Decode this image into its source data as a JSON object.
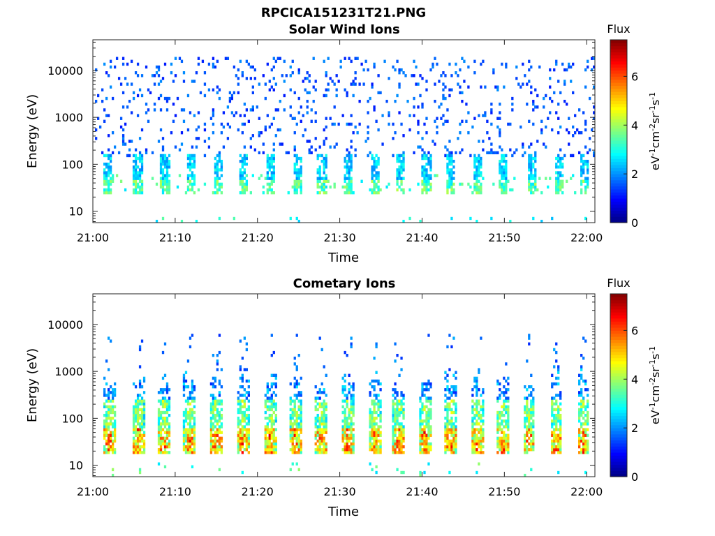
{
  "figure_title": "RPCICA151231T21.PNG",
  "chart_data": [
    {
      "type": "heatmap",
      "title": "Solar Wind Ions",
      "xlabel": "Time",
      "ylabel": "Energy (eV)",
      "x_ticks": [
        "21:00",
        "21:10",
        "21:20",
        "21:30",
        "21:40",
        "21:50",
        "22:00"
      ],
      "xlim": [
        "21:00",
        "22:01"
      ],
      "y_ticks": [
        "10",
        "100",
        "1000",
        "10000"
      ],
      "y_scale": "log",
      "ylim": [
        5.7,
        45000
      ],
      "colorbar": {
        "title": "Flux",
        "label": "eV-1cm-2sr-1s-1",
        "ticks": [
          "0",
          "2",
          "4",
          "6"
        ],
        "range": [
          0,
          7.5
        ],
        "colormap": "jet"
      },
      "pulse_times_min": [
        1.8,
        5.5,
        8.8,
        11.9,
        15.2,
        18.3,
        21.6,
        24.9,
        27.8,
        31.0,
        34.3,
        37.3,
        40.5,
        43.4,
        46.7,
        49.8,
        53.3,
        56.6,
        59.7
      ],
      "description_levels": {
        "background_flux": 1.5,
        "peak_flux": 3.5
      }
    },
    {
      "type": "heatmap",
      "title": "Cometary Ions",
      "xlabel": "Time",
      "ylabel": "Energy (eV)",
      "x_ticks": [
        "21:00",
        "21:10",
        "21:20",
        "21:30",
        "21:40",
        "21:50",
        "22:00"
      ],
      "xlim": [
        "21:00",
        "22:01"
      ],
      "y_ticks": [
        "10",
        "100",
        "1000",
        "10000"
      ],
      "y_scale": "log",
      "ylim": [
        5.7,
        45000
      ],
      "colorbar": {
        "title": "Flux",
        "label": "eV-1cm-2sr-1s-1",
        "ticks": [
          "0",
          "2",
          "4",
          "6"
        ],
        "range": [
          0,
          7.5
        ],
        "colormap": "jet"
      },
      "pulse_times_min": [
        2.0,
        5.5,
        8.6,
        11.8,
        15.0,
        18.2,
        21.5,
        24.6,
        27.8,
        31.0,
        34.2,
        37.2,
        40.3,
        43.5,
        46.8,
        49.8,
        53.0,
        56.3,
        59.6
      ],
      "description_levels": {
        "background_flux": 2.0,
        "peak_flux": 6.5
      }
    }
  ]
}
